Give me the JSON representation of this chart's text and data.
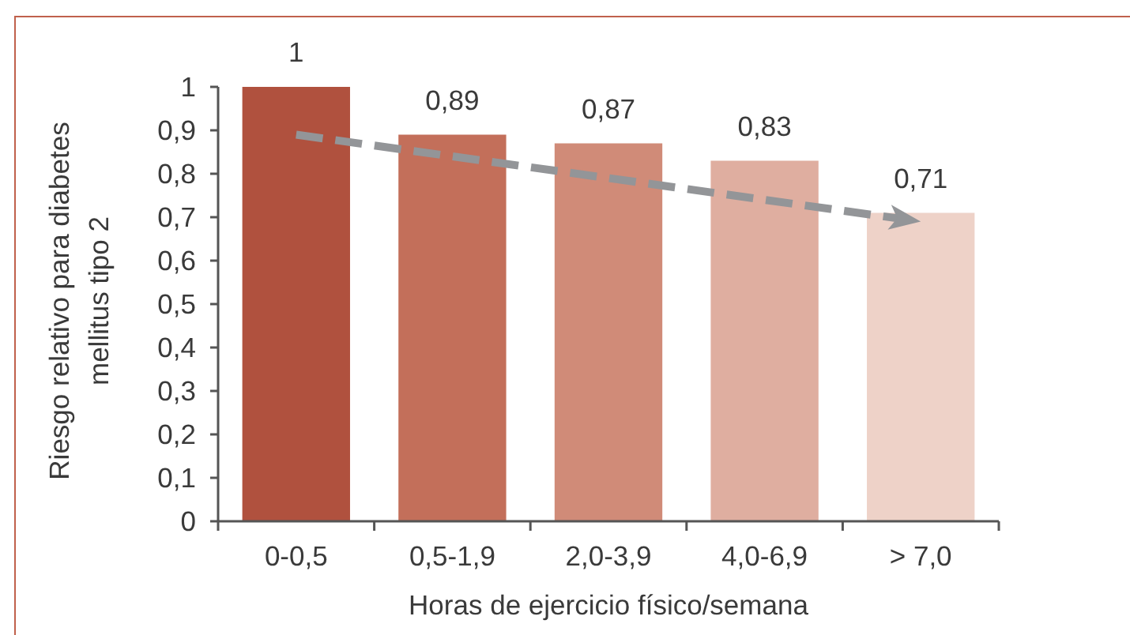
{
  "chart_data": {
    "type": "bar",
    "xlabel": "Horas de ejercicio físico/semana",
    "ylabel": "Riesgo relativo para diabetes\nmellitus tipo 2",
    "categories": [
      "0-0,5",
      "0,5-1,9",
      "2,0-3,9",
      "4,0-6,9",
      "> 7,0"
    ],
    "series": [
      {
        "values": [
          1,
          0.89,
          0.87,
          0.83,
          0.71
        ],
        "colors": [
          "#b0513e",
          "#c36f5a",
          "#d08b78",
          "#dfaea0",
          "#eed2c8"
        ],
        "value_labels": [
          "1",
          "0,89",
          "0,87",
          "0,83",
          "0,71"
        ]
      },
      {
        "type": "line",
        "values": [
          0.89,
          0.84,
          0.79,
          0.74,
          0.69
        ],
        "color": "#939598",
        "line_style": "dashed"
      }
    ],
    "ylim": [
      0,
      1
    ],
    "yticks": [
      0,
      {
        "value": 0.1,
        "label": "0,1"
      },
      {
        "value": 0.2,
        "label": "0,2"
      },
      {
        "value": 0.3,
        "label": "0,3"
      },
      {
        "value": 0.4,
        "label": "0,4"
      },
      {
        "value": 0.5,
        "label": "0,5"
      },
      {
        "value": 0.6,
        "label": "0,6"
      },
      {
        "value": 0.7,
        "label": "0,7"
      },
      {
        "value": 0.8,
        "label": "0,8"
      },
      {
        "value": 0.9,
        "label": "0,9"
      },
      1
    ]
  }
}
